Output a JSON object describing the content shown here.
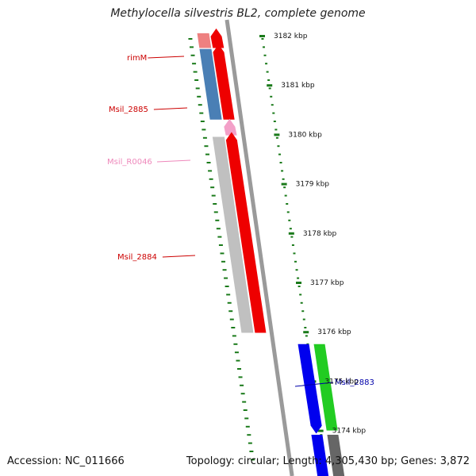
{
  "title": "Methylocella silvestris BL2, complete genome",
  "footer": {
    "accession": "Accession: NC_011666",
    "topology": "Topology: circular; Length: 4,305,430 bp; Genes: 3,872"
  },
  "colors": {
    "tick": "#1a7a1a",
    "backbone": "#9a9a9a",
    "label_red": "#cc0000",
    "label_pink": "#ee88bb",
    "label_blue": "#0000aa"
  },
  "kbp_labels": [
    {
      "label": "3182 kbp",
      "kbp": 3182
    },
    {
      "label": "3181 kbp",
      "kbp": 3181
    },
    {
      "label": "3180 kbp",
      "kbp": 3180
    },
    {
      "label": "3179 kbp",
      "kbp": 3179
    },
    {
      "label": "3178 kbp",
      "kbp": 3178
    },
    {
      "label": "3177 kbp",
      "kbp": 3177
    },
    {
      "label": "3176 kbp",
      "kbp": 3176
    },
    {
      "label": "3175 kbp",
      "kbp": 3175
    },
    {
      "label": "3174 kbp",
      "kbp": 3174
    }
  ],
  "genes": [
    {
      "name": "rimM",
      "label_color": "#cc0000",
      "start_kbp": 3182.05,
      "end_kbp": 3181.75,
      "feature_color": "#ee8080",
      "cds_color": "#ee0000"
    },
    {
      "name": "Msil_2885",
      "label_color": "#cc0000",
      "start_kbp": 3181.73,
      "end_kbp": 3180.3,
      "feature_color": "#4a7fb5",
      "cds_color": "#ee0000"
    },
    {
      "name": "Msil_R0046",
      "label_color": "#ee88bb",
      "start_kbp": 3180.22,
      "end_kbp": 3179.98,
      "feature_color": "",
      "cds_color": "#f3a0c8"
    },
    {
      "name": "Msil_2884",
      "label_color": "#cc0000",
      "start_kbp": 3179.95,
      "end_kbp": 3175.98,
      "feature_color": "#c0c0c0",
      "cds_color": "#ee0000"
    },
    {
      "name": "Msil_2883",
      "label_color": "#0000aa",
      "start_kbp": 3175.75,
      "end_kbp": 3174.0,
      "feature_color": "#0000ee",
      "cds_color": "#22cc22"
    }
  ]
}
